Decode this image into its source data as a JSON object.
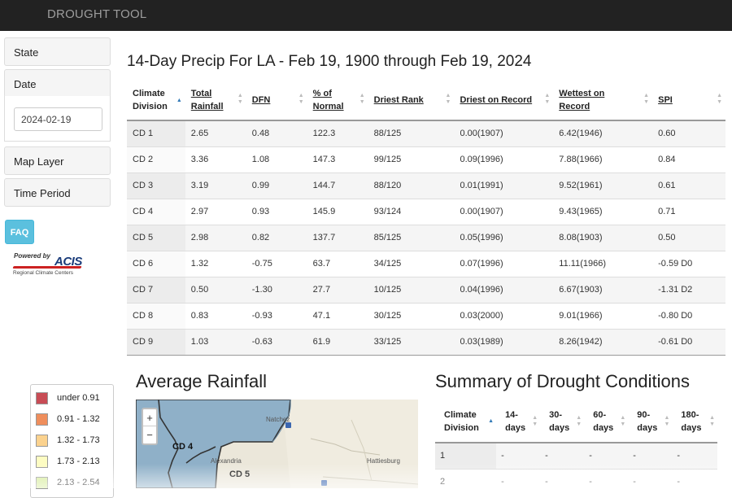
{
  "navbar": {
    "brand": "DROUGHT TOOL"
  },
  "sidebar": {
    "state_label": "State",
    "date_label": "Date",
    "date_value": "2024-02-19",
    "map_layer_label": "Map Layer",
    "time_period_label": "Time Period",
    "faq_label": "FAQ",
    "acis_powered": "Powered by",
    "acis_name": "ACIS",
    "acis_sub": "Regional Climate Centers"
  },
  "main": {
    "title": "14-Day Precip For LA - Feb 19, 1900 through Feb 19, 2024"
  },
  "precip_table": {
    "headers": [
      [
        "Climate",
        "Division"
      ],
      [
        "Total",
        "Rainfall"
      ],
      [
        "DFN"
      ],
      [
        "% of",
        "Normal"
      ],
      [
        "Driest Rank"
      ],
      [
        "Driest on Record"
      ],
      [
        "Wettest on Record"
      ],
      [
        "SPI"
      ]
    ],
    "rows": [
      [
        "CD 1",
        "2.65",
        "0.48",
        "122.3",
        "88/125",
        "0.00(1907)",
        "6.42(1946)",
        "0.60"
      ],
      [
        "CD 2",
        "3.36",
        "1.08",
        "147.3",
        "99/125",
        "0.09(1996)",
        "7.88(1966)",
        "0.84"
      ],
      [
        "CD 3",
        "3.19",
        "0.99",
        "144.7",
        "88/120",
        "0.01(1991)",
        "9.52(1961)",
        "0.61"
      ],
      [
        "CD 4",
        "2.97",
        "0.93",
        "145.9",
        "93/124",
        "0.00(1907)",
        "9.43(1965)",
        "0.71"
      ],
      [
        "CD 5",
        "2.98",
        "0.82",
        "137.7",
        "85/125",
        "0.05(1996)",
        "8.08(1903)",
        "0.50"
      ],
      [
        "CD 6",
        "1.32",
        "-0.75",
        "63.7",
        "34/125",
        "0.07(1996)",
        "11.11(1966)",
        "-0.59 D0"
      ],
      [
        "CD 7",
        "0.50",
        "-1.30",
        "27.7",
        "10/125",
        "0.04(1996)",
        "6.67(1903)",
        "-1.31 D2"
      ],
      [
        "CD 8",
        "0.83",
        "-0.93",
        "47.1",
        "30/125",
        "0.03(2000)",
        "9.01(1966)",
        "-0.80 D0"
      ],
      [
        "CD 9",
        "1.03",
        "-0.63",
        "61.9",
        "33/125",
        "0.03(1989)",
        "8.26(1942)",
        "-0.61 D0"
      ]
    ]
  },
  "legend": {
    "items": [
      {
        "label": "under 0.91",
        "color": "#c84c55"
      },
      {
        "label": "0.91 - 1.32",
        "color": "#ef8e5c"
      },
      {
        "label": "1.32 - 1.73",
        "color": "#fbd28e"
      },
      {
        "label": "1.73 - 2.13",
        "color": "#fdfcc2"
      },
      {
        "label": "2.13 - 2.54",
        "color": "#d6ec9a"
      }
    ]
  },
  "map": {
    "title": "Average Rainfall",
    "zoom_in": "+",
    "zoom_out": "−",
    "division_labels": [
      "CD 4",
      "CD 5"
    ],
    "cities": [
      "Natchez",
      "Alexandria",
      "Hattiesburg"
    ]
  },
  "summary": {
    "title": "Summary of Drought Conditions",
    "headers": [
      [
        "Climate",
        "Division"
      ],
      [
        "14-",
        "days"
      ],
      [
        "30-",
        "days"
      ],
      [
        "60-",
        "days"
      ],
      [
        "90-",
        "days"
      ],
      [
        "180-",
        "days"
      ]
    ],
    "rows": [
      [
        "1",
        "-",
        "-",
        "-",
        "-",
        "-"
      ],
      [
        "2",
        "-",
        "-",
        "-",
        "-",
        "-"
      ]
    ]
  }
}
